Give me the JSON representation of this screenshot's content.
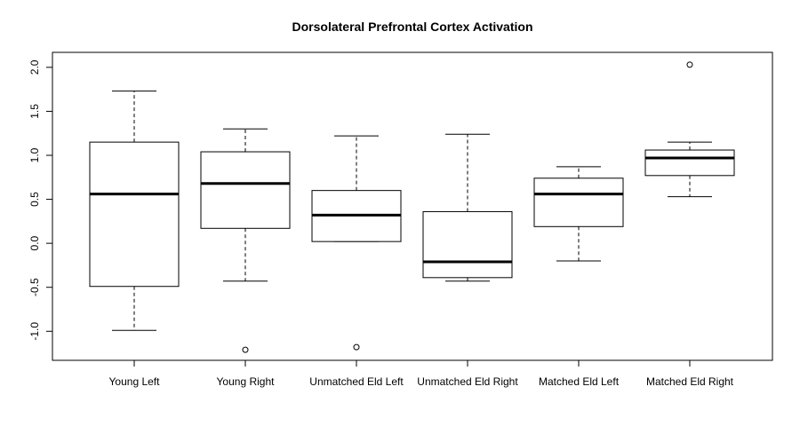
{
  "chart_data": {
    "type": "boxplot",
    "title": "Dorsolateral Prefrontal Cortex Activation",
    "xlabel": "",
    "ylabel": "",
    "ylim": [
      -1.33,
      2.17
    ],
    "yticks": [
      -1.0,
      -0.5,
      0.0,
      0.5,
      1.0,
      1.5,
      2.0
    ],
    "ytick_labels": [
      "-1.0",
      "-0.5",
      "0.0",
      "0.5",
      "1.0",
      "1.5",
      "2.0"
    ],
    "grid": false,
    "legend": "none",
    "categories": [
      "Young Left",
      "Young Right",
      "Unmatched Eld Left",
      "Unmatched Eld Right",
      "Matched Eld Left",
      "Matched Eld Right"
    ],
    "boxes": [
      {
        "whisker_low": -0.99,
        "q1": -0.49,
        "median": 0.56,
        "q3": 1.15,
        "whisker_high": 1.73,
        "outliers": []
      },
      {
        "whisker_low": -0.43,
        "q1": 0.17,
        "median": 0.68,
        "q3": 1.04,
        "whisker_high": 1.3,
        "outliers": [
          -1.21
        ]
      },
      {
        "whisker_low": 0.02,
        "q1": 0.02,
        "median": 0.32,
        "q3": 0.6,
        "whisker_high": 1.22,
        "outliers": [
          -1.18
        ]
      },
      {
        "whisker_low": -0.43,
        "q1": -0.39,
        "median": -0.21,
        "q3": 0.36,
        "whisker_high": 1.24,
        "outliers": []
      },
      {
        "whisker_low": -0.2,
        "q1": 0.19,
        "median": 0.56,
        "q3": 0.74,
        "whisker_high": 0.87,
        "outliers": []
      },
      {
        "whisker_low": 0.53,
        "q1": 0.77,
        "median": 0.97,
        "q3": 1.06,
        "whisker_high": 1.15,
        "outliers": [
          2.03
        ]
      }
    ]
  }
}
